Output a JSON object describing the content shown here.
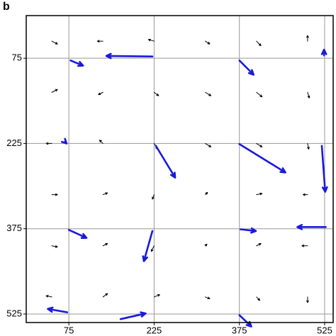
{
  "chart_data": {
    "type": "quiver",
    "label": "b",
    "xlim": [
      0,
      540
    ],
    "ylim": [
      0,
      540
    ],
    "y_inverted": true,
    "xticks": [
      75,
      225,
      375,
      525
    ],
    "yticks": [
      75,
      225,
      375,
      525
    ],
    "grid": true,
    "series": [
      {
        "color": "#000000",
        "x": [
          45,
          135,
          225,
          315,
          405,
          495,
          45,
          135,
          225,
          315,
          405,
          495,
          45,
          135,
          225,
          315,
          405,
          495,
          45,
          135,
          225,
          315,
          405,
          495,
          45,
          135,
          225,
          315,
          405,
          495,
          45,
          135,
          225,
          315,
          405,
          495
        ],
        "y": [
          45,
          45,
          45,
          45,
          45,
          45,
          135,
          135,
          135,
          135,
          135,
          135,
          225,
          225,
          225,
          225,
          225,
          225,
          315,
          315,
          315,
          315,
          315,
          315,
          405,
          405,
          405,
          405,
          405,
          405,
          495,
          495,
          495,
          495,
          495,
          495
        ],
        "u": [
          10,
          -10,
          -10,
          8,
          8,
          0,
          10,
          -8,
          8,
          10,
          10,
          3,
          -10,
          -6,
          6,
          10,
          10,
          2,
          10,
          8,
          -3,
          4,
          10,
          -8,
          10,
          8,
          -5,
          3,
          8,
          -10,
          -10,
          8,
          10,
          8,
          6,
          0
        ],
        "v": [
          5,
          0,
          -3,
          5,
          8,
          -10,
          -5,
          4,
          6,
          6,
          8,
          10,
          0,
          -6,
          10,
          6,
          6,
          10,
          0,
          -3,
          8,
          -4,
          -2,
          0,
          2,
          -4,
          10,
          -3,
          -4,
          0,
          -2,
          -6,
          -4,
          3,
          6,
          10
        ]
      },
      {
        "color": "#1a1adb",
        "x": [
          78,
          222,
          375,
          524,
          68,
          228,
          375,
          520,
          75,
          222,
          377,
          527,
          72,
          166,
          375
        ],
        "y": [
          79,
          72,
          79,
          70,
          222,
          229,
          226,
          229,
          377,
          379,
          376,
          372,
          522,
          534,
          527
        ],
        "u": [
          22,
          -81,
          25,
          0,
          3,
          34,
          81,
          6,
          31,
          -15,
          27,
          -50,
          -34,
          44,
          21
        ],
        "v": [
          9,
          -1,
          25,
          -10,
          3,
          56,
          50,
          81,
          14,
          53,
          3,
          0,
          -6,
          -10,
          20
        ]
      }
    ]
  }
}
